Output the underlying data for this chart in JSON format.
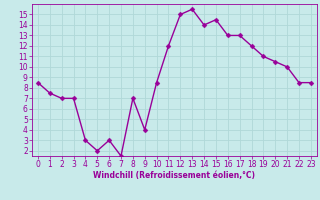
{
  "x": [
    0,
    1,
    2,
    3,
    4,
    5,
    6,
    7,
    8,
    9,
    10,
    11,
    12,
    13,
    14,
    15,
    16,
    17,
    18,
    19,
    20,
    21,
    22,
    23
  ],
  "y": [
    8.5,
    7.5,
    7.0,
    7.0,
    3.0,
    2.0,
    3.0,
    1.5,
    7.0,
    4.0,
    8.5,
    12.0,
    15.0,
    15.5,
    14.0,
    14.5,
    13.0,
    13.0,
    12.0,
    11.0,
    10.5,
    10.0,
    8.5,
    8.5
  ],
  "line_color": "#990099",
  "marker_color": "#990099",
  "bg_color": "#c8eaea",
  "grid_color": "#b0d8d8",
  "xlabel": "Windchill (Refroidissement éolien,°C)",
  "tick_color": "#990099",
  "ylim": [
    1.5,
    16
  ],
  "xlim": [
    -0.5,
    23.5
  ],
  "yticks": [
    2,
    3,
    4,
    5,
    6,
    7,
    8,
    9,
    10,
    11,
    12,
    13,
    14,
    15
  ],
  "xticks": [
    0,
    1,
    2,
    3,
    4,
    5,
    6,
    7,
    8,
    9,
    10,
    11,
    12,
    13,
    14,
    15,
    16,
    17,
    18,
    19,
    20,
    21,
    22,
    23
  ],
  "axis_fontsize": 5.5,
  "tick_fontsize": 5.5,
  "line_width": 1.0,
  "marker_size": 2.5
}
